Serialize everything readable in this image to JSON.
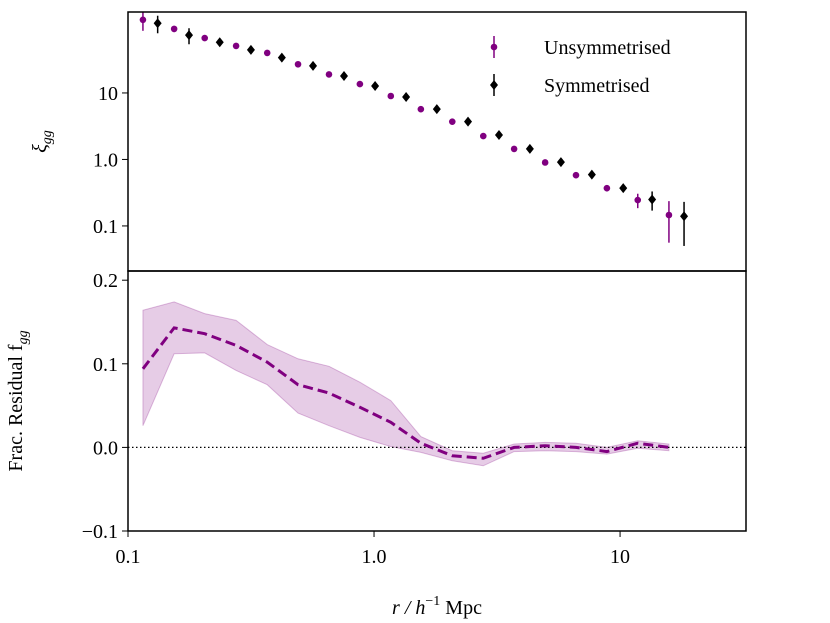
{
  "chart_data": [
    {
      "type": "errorbar",
      "log_x": true,
      "log_y": true,
      "xlim": [
        0.1,
        32.5
      ],
      "ylim": [
        0.021,
        165
      ],
      "yticks": [
        0.1,
        {
          "value": 1,
          "label": "1.0"
        },
        10
      ],
      "ylabel": {
        "text": "ξ",
        "sub": "gg"
      },
      "legend": "upper right",
      "series": [
        {
          "name": "Unsymmetrised",
          "color": "#800080",
          "marker": "circle",
          "x": [
            0.115,
            0.154,
            0.205,
            0.275,
            0.368,
            0.491,
            0.656,
            0.876,
            1.17,
            1.55,
            2.08,
            2.78,
            3.71,
            4.96,
            6.62,
            8.84,
            11.8,
            15.8
          ],
          "values": [
            126,
            92,
            67,
            51,
            40,
            27,
            19,
            13.6,
            9.0,
            5.7,
            3.7,
            2.25,
            1.44,
            0.9,
            0.58,
            0.37,
            0.245,
            0.146
          ],
          "errors": [
            40,
            10,
            5,
            3,
            2,
            1.5,
            1,
            0.7,
            0.5,
            0.3,
            0.2,
            0.12,
            0.08,
            0.05,
            0.05,
            0.04,
            0.06,
            0.09
          ]
        },
        {
          "name": "Symmetrised",
          "color": "#000000",
          "marker": "diamond",
          "x": [
            0.132,
            0.177,
            0.236,
            0.316,
            0.422,
            0.565,
            0.755,
            1.01,
            1.35,
            1.8,
            2.41,
            3.22,
            4.3,
            5.75,
            7.68,
            10.3,
            13.5,
            18.2
          ],
          "values": [
            112,
            74,
            58,
            44.5,
            34,
            25.5,
            18,
            12.7,
            8.7,
            5.7,
            3.7,
            2.33,
            1.44,
            0.91,
            0.59,
            0.37,
            0.25,
            0.14
          ],
          "errors": [
            33,
            20,
            6,
            3,
            2,
            1.5,
            1,
            0.7,
            0.5,
            0.3,
            0.2,
            0.12,
            0.08,
            0.06,
            0.05,
            0.04,
            0.08,
            0.09
          ]
        }
      ]
    },
    {
      "type": "line",
      "log_x": true,
      "xlim": [
        0.1,
        32.5
      ],
      "ylim": [
        -0.1,
        0.211
      ],
      "xticks": [
        0.1,
        {
          "value": 1,
          "label": "1.0"
        },
        10
      ],
      "yticks": [
        0.2,
        0.1,
        {
          "value": 0,
          "label": "0.0"
        },
        {
          "value": -0.1,
          "label": "−0.1"
        }
      ],
      "xlabel": {
        "text": "r",
        "rest": " / h",
        "sup": "−1",
        "unit": " Mpc"
      },
      "ylabel": {
        "text": "Frac. Residual f",
        "sub": "gg"
      },
      "hline": 0,
      "color": "#800080",
      "x": [
        0.115,
        0.154,
        0.205,
        0.275,
        0.368,
        0.491,
        0.656,
        0.876,
        1.17,
        1.55,
        2.08,
        2.78,
        3.71,
        4.96,
        6.62,
        8.84,
        11.8,
        15.8
      ],
      "values": [
        0.094,
        0.143,
        0.136,
        0.122,
        0.102,
        0.075,
        0.065,
        0.048,
        0.03,
        0.005,
        -0.01,
        -0.013,
        0.0,
        0.002,
        0.0,
        -0.005,
        0.005,
        0.0
      ],
      "upper": [
        0.164,
        0.174,
        0.16,
        0.152,
        0.123,
        0.106,
        0.097,
        0.078,
        0.056,
        0.013,
        -0.004,
        -0.007,
        0.004,
        0.006,
        0.005,
        0.0,
        0.008,
        0.004
      ],
      "lower": [
        0.026,
        0.112,
        0.113,
        0.092,
        0.075,
        0.041,
        0.026,
        0.012,
        0.001,
        -0.006,
        -0.016,
        -0.022,
        -0.005,
        -0.004,
        -0.005,
        -0.008,
        -0.001,
        -0.004
      ]
    }
  ]
}
